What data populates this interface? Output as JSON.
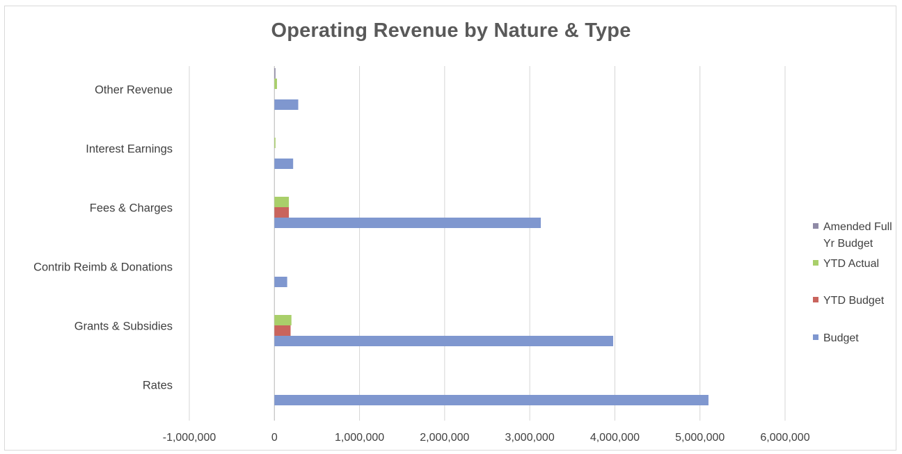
{
  "chart_data": {
    "type": "bar",
    "orientation": "horizontal",
    "title": "Operating Revenue by Nature & Type",
    "xlabel": "",
    "ylabel": "",
    "categories": [
      "Rates",
      "Grants & Subsidies",
      "Contrib Reimb & Donations",
      "Fees & Charges",
      "Interest Earnings",
      "Other Revenue"
    ],
    "xlim": [
      -1000000,
      6000000
    ],
    "x_ticks": [
      -1000000,
      0,
      1000000,
      2000000,
      3000000,
      4000000,
      5000000,
      6000000
    ],
    "x_tick_labels": [
      "-1,000,000",
      "0",
      "1,000,000",
      "2,000,000",
      "3,000,000",
      "4,000,000",
      "5,000,000",
      "6,000,000"
    ],
    "grid": "vertical major gridlines",
    "legend_position": "right",
    "series": [
      {
        "name": "Budget",
        "color": "#7f97cf",
        "values": [
          5100000,
          3980000,
          150000,
          3130000,
          220000,
          280000
        ]
      },
      {
        "name": "YTD Budget",
        "color": "#c9645d",
        "values": [
          0,
          190000,
          0,
          170000,
          0,
          0
        ]
      },
      {
        "name": "YTD Actual",
        "color": "#a9cf6a",
        "values": [
          0,
          200000,
          0,
          170000,
          10000,
          30000
        ]
      },
      {
        "name": "Amended Full Yr Budget",
        "color": "#8f8aa6",
        "values": [
          0,
          0,
          0,
          0,
          0,
          10000
        ]
      }
    ],
    "legend": [
      {
        "label": "Amended Full Yr Budget",
        "lines": [
          "Amended Full",
          "Yr Budget"
        ],
        "color": "#8f8aa6"
      },
      {
        "label": "YTD Actual",
        "lines": [
          "YTD Actual"
        ],
        "color": "#a9cf6a"
      },
      {
        "label": "YTD Budget",
        "lines": [
          "YTD Budget"
        ],
        "color": "#c9645d"
      },
      {
        "label": "Budget",
        "lines": [
          "Budget"
        ],
        "color": "#7f97cf"
      }
    ]
  }
}
